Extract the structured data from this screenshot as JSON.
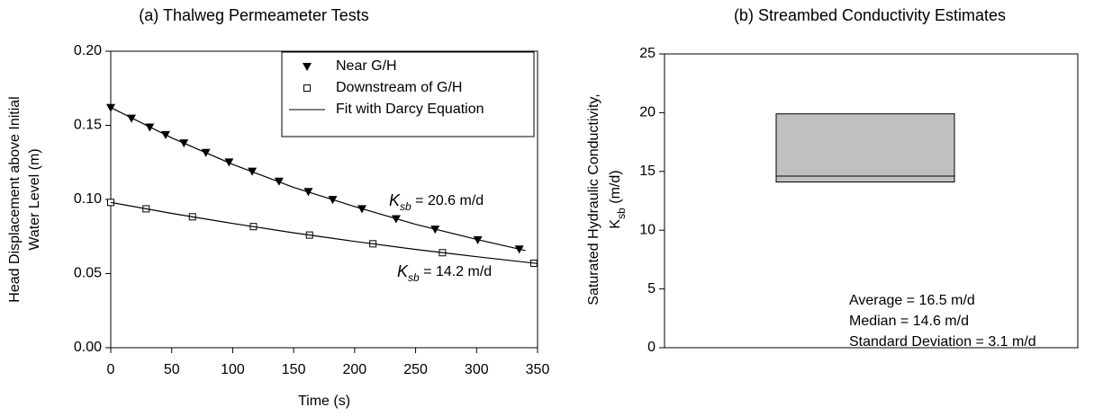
{
  "chart_data": [
    {
      "type": "scatter",
      "title": "(a) Thalweg Permeameter Tests",
      "xlabel": "Time (s)",
      "ylabel": [
        "Head Displacement above Initial",
        "Water Level (m)"
      ],
      "xlim": [
        0,
        350
      ],
      "xticks": [
        0,
        50,
        100,
        150,
        200,
        250,
        300,
        350
      ],
      "ylim": [
        0,
        0.2
      ],
      "yticks": [
        {
          "value": 0,
          "label": "0.00"
        },
        0.05,
        {
          "value": 0.1,
          "label": "0.10"
        },
        0.15,
        {
          "value": 0.2,
          "label": "0.20"
        }
      ],
      "legend": "upper right",
      "series": [
        {
          "name": "Near G/H",
          "color": "#000000",
          "marker": "triangle-down",
          "line": false,
          "x": [
            0,
            17,
            32,
            45,
            60,
            78,
            97,
            116,
            138,
            162,
            182,
            206,
            234,
            266,
            301,
            335
          ],
          "values": [
            0.162,
            0.1548,
            0.1488,
            0.1437,
            0.1381,
            0.1317,
            0.1252,
            0.119,
            0.1123,
            0.1053,
            0.0999,
            0.0937,
            0.087,
            0.0799,
            0.0728,
            0.0665
          ]
        },
        {
          "name": "Downstream of G/H",
          "color": "#000000",
          "marker": "square",
          "line": false,
          "x": [
            0,
            29,
            67,
            117,
            163,
            215,
            272,
            347
          ],
          "values": [
            0.098,
            0.0937,
            0.0883,
            0.0817,
            0.076,
            0.0701,
            0.0641,
            0.057
          ]
        },
        {
          "name": "Fit with Darcy Equation",
          "color": "#000000",
          "marker": "none",
          "line": true,
          "x": [
            0,
            50,
            100,
            150,
            200,
            250,
            300,
            340,
            null,
            0,
            50,
            100,
            150,
            200,
            250,
            300,
            350
          ],
          "values": [
            0.162,
            0.1416,
            0.1237,
            0.1081,
            0.0952,
            0.0832,
            0.0731,
            0.0656,
            null,
            0.098,
            0.0906,
            0.0838,
            0.0775,
            0.0717,
            0.0663,
            0.0614,
            0.0568
          ]
        }
      ],
      "annotations": [
        {
          "parts": [
            "K",
            "sb",
            " = 20.6 m/d"
          ]
        },
        {
          "parts": [
            "K",
            "sb",
            " = 14.2 m/d"
          ]
        }
      ]
    },
    {
      "type": "box",
      "title": "(b) Streambed Conductivity Estimates",
      "ylabel": [
        "Saturated Hydraulic Conductivity,",
        {
          "parts": [
            "K",
            "sb",
            " (m/d)"
          ]
        }
      ],
      "ylim": [
        0,
        25
      ],
      "yticks": [
        0,
        5,
        10,
        15,
        20,
        25
      ],
      "box": {
        "q1": 14.1,
        "median": 14.6,
        "q3": 19.9,
        "color": "#c0c0c0"
      },
      "annotations": [
        "Average = 16.5 m/d",
        "Median = 14.6 m/d",
        "Standard Deviation = 3.1 m/d"
      ]
    }
  ]
}
